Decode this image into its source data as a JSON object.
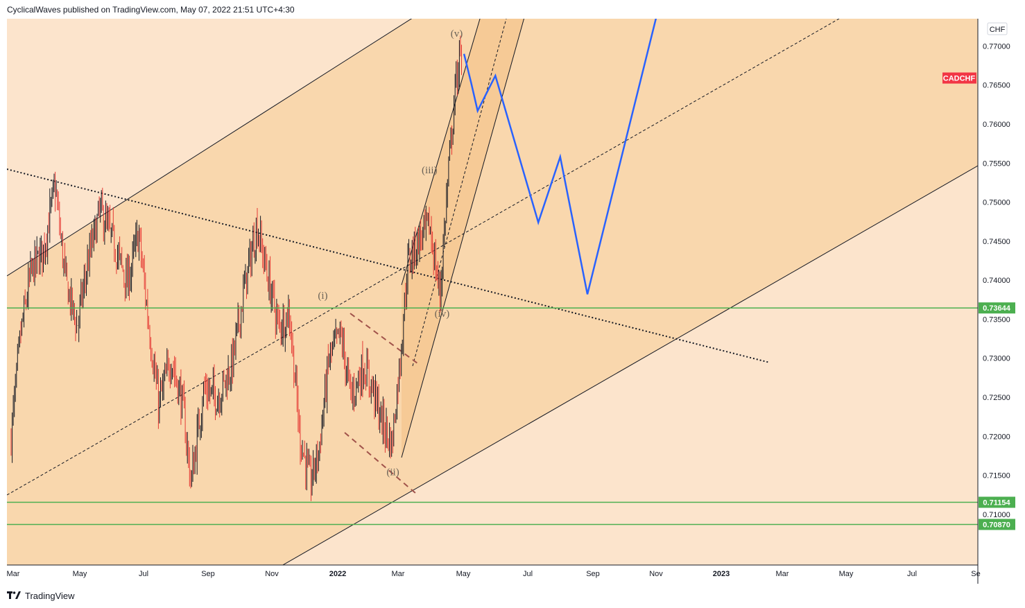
{
  "header": {
    "publisher": "CyclicalWaves published on TradingView.com, May 07, 2022 21:51 UTC+4:30"
  },
  "footer": {
    "brand": "TradingView",
    "logo_icon": "tradingview-logo-icon"
  },
  "colors": {
    "background": "#fce4cc",
    "channel_fill": "#f9d7ad",
    "inner_channel_fill": "#f5c58c",
    "candle_up": "#131722",
    "candle_down": "#e53935",
    "support_line": "#4caf50",
    "projection": "#2962ff",
    "price_tag": "#f23645",
    "green_tag": "#4caf50"
  },
  "chart_data": {
    "type": "candlestick",
    "symbol": "CADCHF",
    "currency": "CHF",
    "x_axis_ticks": [
      "Mar",
      "May",
      "Jul",
      "Sep",
      "Nov",
      "2022",
      "Mar",
      "May",
      "Jul",
      "Sep",
      "Nov",
      "2023",
      "Mar",
      "May",
      "Jul",
      "Se"
    ],
    "y_axis_ticks": [
      "0.77000",
      "0.76500",
      "0.76000",
      "0.75500",
      "0.75000",
      "0.74500",
      "0.74000",
      "0.73500",
      "0.73000",
      "0.72500",
      "0.72000",
      "0.71500",
      "0.71000"
    ],
    "ylim": [
      0.7035,
      0.7735
    ],
    "horizontal_levels": [
      {
        "value": 0.73644,
        "label": "0.73644"
      },
      {
        "value": 0.71154,
        "label": "0.71154"
      },
      {
        "value": 0.7087,
        "label": "0.70870"
      }
    ],
    "symbol_tag": {
      "label": "CADCHF",
      "value": 0.7659
    },
    "wave_labels": [
      {
        "text": "(i)",
        "date": "2021-12-24",
        "value": 0.7376
      },
      {
        "text": "(ii)",
        "date": "2022-03-01",
        "value": 0.715
      },
      {
        "text": "(iii)",
        "date": "2022-04-05",
        "value": 0.7537
      },
      {
        "text": "(iv)",
        "date": "2022-04-17",
        "value": 0.7353
      },
      {
        "text": "(v)",
        "date": "2022-05-01",
        "value": 0.7712
      }
    ],
    "projection_path": [
      {
        "date": "2022-05-08",
        "value": 0.769
      },
      {
        "date": "2022-05-15",
        "value": 0.7652
      },
      {
        "date": "2022-05-21",
        "value": 0.7617
      },
      {
        "date": "2022-06-07",
        "value": 0.7662
      },
      {
        "date": "2022-07-18",
        "value": 0.7474
      },
      {
        "date": "2022-08-08",
        "value": 0.7558
      },
      {
        "date": "2022-09-03",
        "value": 0.7382
      },
      {
        "date": "2022-11-08",
        "value": 0.7738
      }
    ],
    "daily_price_path": [
      {
        "date": "2021-03-01",
        "value": 0.72
      },
      {
        "date": "2021-03-10",
        "value": 0.733
      },
      {
        "date": "2021-03-20",
        "value": 0.741
      },
      {
        "date": "2021-04-01",
        "value": 0.744
      },
      {
        "date": "2021-04-12",
        "value": 0.752
      },
      {
        "date": "2021-04-22",
        "value": 0.74
      },
      {
        "date": "2021-05-03",
        "value": 0.734
      },
      {
        "date": "2021-05-13",
        "value": 0.742
      },
      {
        "date": "2021-05-25",
        "value": 0.749
      },
      {
        "date": "2021-06-08",
        "value": 0.7445
      },
      {
        "date": "2021-06-20",
        "value": 0.7395
      },
      {
        "date": "2021-07-01",
        "value": 0.746
      },
      {
        "date": "2021-07-10",
        "value": 0.735
      },
      {
        "date": "2021-07-20",
        "value": 0.724
      },
      {
        "date": "2021-08-01",
        "value": 0.73
      },
      {
        "date": "2021-08-12",
        "value": 0.724
      },
      {
        "date": "2021-08-20",
        "value": 0.714
      },
      {
        "date": "2021-09-01",
        "value": 0.726
      },
      {
        "date": "2021-09-15",
        "value": 0.725
      },
      {
        "date": "2021-09-28",
        "value": 0.729
      },
      {
        "date": "2021-10-10",
        "value": 0.739
      },
      {
        "date": "2021-10-22",
        "value": 0.747
      },
      {
        "date": "2021-11-02",
        "value": 0.74
      },
      {
        "date": "2021-11-12",
        "value": 0.734
      },
      {
        "date": "2021-11-22",
        "value": 0.736
      },
      {
        "date": "2021-12-02",
        "value": 0.72
      },
      {
        "date": "2021-12-12",
        "value": 0.714
      },
      {
        "date": "2021-12-20",
        "value": 0.718
      },
      {
        "date": "2021-12-30",
        "value": 0.73
      },
      {
        "date": "2022-01-10",
        "value": 0.733
      },
      {
        "date": "2022-01-20",
        "value": 0.725
      },
      {
        "date": "2022-02-01",
        "value": 0.729
      },
      {
        "date": "2022-02-10",
        "value": 0.726
      },
      {
        "date": "2022-02-18",
        "value": 0.722
      },
      {
        "date": "2022-02-28",
        "value": 0.719
      },
      {
        "date": "2022-03-08",
        "value": 0.73
      },
      {
        "date": "2022-03-15",
        "value": 0.742
      },
      {
        "date": "2022-03-25",
        "value": 0.745
      },
      {
        "date": "2022-04-05",
        "value": 0.747
      },
      {
        "date": "2022-04-15",
        "value": 0.738
      },
      {
        "date": "2022-04-22",
        "value": 0.752
      },
      {
        "date": "2022-04-30",
        "value": 0.765
      },
      {
        "date": "2022-05-04",
        "value": 0.769
      },
      {
        "date": "2022-05-06",
        "value": 0.766
      }
    ]
  }
}
